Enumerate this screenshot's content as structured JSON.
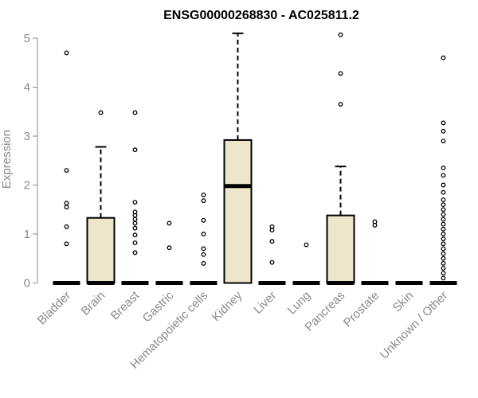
{
  "chart_data": {
    "type": "box",
    "title": "ENSG00000268830 - AC025811.2",
    "ylabel": "Expression",
    "xlabel": "",
    "ylim": [
      0,
      5.2
    ],
    "yticks": [
      0,
      1,
      2,
      3,
      4,
      5
    ],
    "box_color": "#ede6ca",
    "categories": [
      "Bladder",
      "Brain",
      "Breast",
      "Gastric",
      "Hematopoietic cells",
      "Kidney",
      "Liver",
      "Lung",
      "Pancreas",
      "Prostate",
      "Skin",
      "Unknown / Other"
    ],
    "boxes": [
      {
        "q1": 0,
        "median": 0,
        "q3": 0,
        "whisker_low": 0,
        "whisker_high": 0,
        "outliers": [
          0.8,
          1.15,
          1.55,
          1.63,
          2.3,
          4.7
        ]
      },
      {
        "q1": 0,
        "median": 0,
        "q3": 1.33,
        "whisker_low": 0,
        "whisker_high": 2.78,
        "outliers": [
          3.48
        ]
      },
      {
        "q1": 0,
        "median": 0,
        "q3": 0,
        "whisker_low": 0,
        "whisker_high": 0,
        "outliers": [
          0.62,
          0.82,
          0.98,
          1.12,
          1.22,
          1.3,
          1.38,
          1.45,
          1.65,
          2.72,
          3.48
        ]
      },
      {
        "q1": 0,
        "median": 0,
        "q3": 0,
        "whisker_low": 0,
        "whisker_high": 0,
        "outliers": [
          0.72,
          1.22
        ]
      },
      {
        "q1": 0,
        "median": 0,
        "q3": 0,
        "whisker_low": 0,
        "whisker_high": 0,
        "outliers": [
          0.4,
          0.58,
          0.7,
          1.0,
          1.28,
          1.68,
          1.8
        ]
      },
      {
        "q1": 0,
        "median": 1.98,
        "q3": 2.92,
        "whisker_low": 0,
        "whisker_high": 5.1,
        "outliers": []
      },
      {
        "q1": 0,
        "median": 0,
        "q3": 0,
        "whisker_low": 0,
        "whisker_high": 0,
        "outliers": [
          0.42,
          0.85,
          1.08,
          1.15
        ]
      },
      {
        "q1": 0,
        "median": 0,
        "q3": 0,
        "whisker_low": 0,
        "whisker_high": 0,
        "outliers": [
          0.78
        ]
      },
      {
        "q1": 0,
        "median": 0,
        "q3": 1.38,
        "whisker_low": 0,
        "whisker_high": 2.38,
        "outliers": [
          3.65,
          4.28,
          5.07
        ]
      },
      {
        "q1": 0,
        "median": 0,
        "q3": 0,
        "whisker_low": 0,
        "whisker_high": 0,
        "outliers": [
          1.18,
          1.25
        ]
      },
      {
        "q1": 0,
        "median": 0,
        "q3": 0,
        "whisker_low": 0,
        "whisker_high": 0,
        "outliers": []
      },
      {
        "q1": 0,
        "median": 0,
        "q3": 0,
        "whisker_low": 0,
        "whisker_high": 0,
        "outliers": [
          0.1,
          0.2,
          0.3,
          0.4,
          0.5,
          0.6,
          0.7,
          0.8,
          0.9,
          1.0,
          1.1,
          1.2,
          1.3,
          1.4,
          1.5,
          1.6,
          1.7,
          1.85,
          2.0,
          2.2,
          2.35,
          2.9,
          3.1,
          3.27,
          4.6
        ]
      }
    ]
  }
}
